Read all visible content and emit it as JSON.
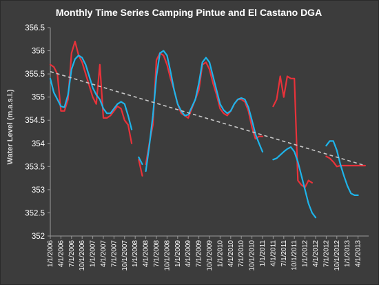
{
  "chart_data": {
    "type": "line",
    "title": "Monthly Time Series Camping Pintue and El Castano DGA",
    "ylabel": "Water Level (m.a.s.l.)",
    "xlabel": "",
    "ylim": [
      352,
      356.5
    ],
    "y_ticks": [
      "352",
      "352.5",
      "353",
      "353.5",
      "354",
      "354.5",
      "355",
      "355.5",
      "356",
      "356.5"
    ],
    "x_tick_labels": [
      "1/1/2006",
      "4/1/2006",
      "7/1/2006",
      "10/1/2006",
      "1/1/2007",
      "4/1/2007",
      "7/1/2007",
      "10/1/2007",
      "1/1/2008",
      "4/1/2008",
      "7/1/2008",
      "10/1/2008",
      "1/1/2009",
      "4/1/2009",
      "7/1/2009",
      "10/1/2009",
      "1/1/2010",
      "4/1/2010",
      "7/1/2010",
      "10/1/2010",
      "1/1/2011",
      "4/1/2011",
      "7/1/2011",
      "10/1/2011",
      "1/1/2012",
      "4/1/2012",
      "7/1/2012",
      "10/1/2012",
      "1/1/2013",
      "4/1/2013"
    ],
    "grid": false,
    "legend": "none",
    "colors": {
      "red": "#e8323a",
      "blue": "#1eb4ea",
      "trend": "#c8c8c8",
      "background": "#3c3c3c"
    },
    "series": [
      {
        "color": "#e8323a",
        "segments": [
          [
            [
              "2006-01",
              355.7
            ],
            [
              "2006-02",
              355.65
            ],
            [
              "2006-03",
              355.5
            ],
            [
              "2006-04",
              354.7
            ],
            [
              "2006-05",
              354.7
            ],
            [
              "2006-06",
              354.95
            ],
            [
              "2006-07",
              355.95
            ],
            [
              "2006-08",
              356.2
            ],
            [
              "2006-09",
              355.9
            ],
            [
              "2006-10",
              355.75
            ],
            [
              "2006-11",
              355.5
            ],
            [
              "2006-12",
              355.25
            ],
            [
              "2007-01",
              355.0
            ],
            [
              "2007-02",
              354.85
            ],
            [
              "2007-03",
              355.7
            ],
            [
              "2007-04",
              354.55
            ],
            [
              "2007-05",
              354.55
            ],
            [
              "2007-06",
              354.6
            ],
            [
              "2007-07",
              354.7
            ],
            [
              "2007-08",
              354.8
            ],
            [
              "2007-09",
              354.75
            ],
            [
              "2007-10",
              354.5
            ],
            [
              "2007-11",
              354.4
            ],
            [
              "2007-12",
              354.0
            ]
          ],
          [
            [
              "2008-02",
              353.65
            ],
            [
              "2008-03",
              353.3
            ]
          ],
          [
            [
              "2008-04",
              353.55
            ],
            [
              "2008-05",
              354.0
            ],
            [
              "2008-06",
              354.4
            ],
            [
              "2008-07",
              355.8
            ],
            [
              "2008-08",
              355.95
            ],
            [
              "2008-09",
              355.9
            ],
            [
              "2008-10",
              355.7
            ],
            [
              "2008-11",
              355.4
            ],
            [
              "2008-12",
              355.15
            ],
            [
              "2009-01",
              354.85
            ],
            [
              "2009-02",
              354.65
            ],
            [
              "2009-03",
              354.6
            ],
            [
              "2009-04",
              354.55
            ],
            [
              "2009-05",
              354.75
            ],
            [
              "2009-06",
              354.95
            ],
            [
              "2009-07",
              355.15
            ],
            [
              "2009-08",
              355.7
            ],
            [
              "2009-09",
              355.75
            ],
            [
              "2009-10",
              355.6
            ],
            [
              "2009-11",
              355.3
            ],
            [
              "2009-12",
              355.05
            ],
            [
              "2010-01",
              354.75
            ],
            [
              "2010-02",
              354.65
            ],
            [
              "2010-03",
              354.6
            ],
            [
              "2010-04",
              354.7
            ],
            [
              "2010-05",
              354.85
            ],
            [
              "2010-06",
              354.95
            ],
            [
              "2010-07",
              354.95
            ],
            [
              "2010-08",
              354.9
            ],
            [
              "2010-09",
              354.7
            ],
            [
              "2010-10",
              354.35
            ],
            [
              "2010-11",
              354.1
            ],
            [
              "2010-12",
              354.15
            ],
            [
              "2011-01",
              354.15
            ]
          ],
          [
            [
              "2011-04",
              354.8
            ],
            [
              "2011-05",
              354.95
            ],
            [
              "2011-06",
              355.45
            ],
            [
              "2011-07",
              355.0
            ],
            [
              "2011-08",
              355.45
            ],
            [
              "2011-09",
              355.4
            ],
            [
              "2011-10",
              355.4
            ],
            [
              "2011-11",
              353.2
            ],
            [
              "2011-12",
              353.1
            ],
            [
              "2012-01",
              353.05
            ],
            [
              "2012-02",
              353.2
            ],
            [
              "2012-03",
              353.15
            ]
          ],
          [
            [
              "2012-07",
              353.72
            ],
            [
              "2012-08",
              353.68
            ],
            [
              "2012-09",
              353.6
            ],
            [
              "2012-10",
              353.5
            ],
            [
              "2012-11",
              353.52
            ],
            [
              "2012-12",
              353.52
            ],
            [
              "2013-01",
              353.52
            ],
            [
              "2013-02",
              353.52
            ],
            [
              "2013-03",
              353.52
            ],
            [
              "2013-04",
              353.52
            ],
            [
              "2013-05",
              353.52
            ],
            [
              "2013-06",
              353.52
            ]
          ]
        ]
      },
      {
        "color": "#1eb4ea",
        "segments": [
          [
            [
              "2006-01",
              355.4
            ],
            [
              "2006-02",
              355.1
            ],
            [
              "2006-03",
              354.95
            ],
            [
              "2006-04",
              354.8
            ],
            [
              "2006-05",
              354.78
            ],
            [
              "2006-06",
              355.05
            ],
            [
              "2006-07",
              355.6
            ],
            [
              "2006-08",
              355.82
            ],
            [
              "2006-09",
              355.9
            ],
            [
              "2006-10",
              355.85
            ],
            [
              "2006-11",
              355.7
            ],
            [
              "2006-12",
              355.45
            ],
            [
              "2007-01",
              355.2
            ],
            [
              "2007-02",
              355.05
            ],
            [
              "2007-03",
              354.95
            ],
            [
              "2007-04",
              354.75
            ],
            [
              "2007-05",
              354.65
            ],
            [
              "2007-06",
              354.65
            ],
            [
              "2007-07",
              354.75
            ],
            [
              "2007-08",
              354.85
            ],
            [
              "2007-09",
              354.9
            ],
            [
              "2007-10",
              354.85
            ],
            [
              "2007-11",
              354.6
            ],
            [
              "2007-12",
              354.3
            ]
          ],
          [
            [
              "2008-02",
              353.7
            ],
            [
              "2008-03",
              353.55
            ]
          ],
          [
            [
              "2008-04",
              353.4
            ],
            [
              "2008-05",
              353.95
            ],
            [
              "2008-06",
              354.6
            ],
            [
              "2008-07",
              355.45
            ],
            [
              "2008-08",
              355.95
            ],
            [
              "2008-09",
              356.0
            ],
            [
              "2008-10",
              355.9
            ],
            [
              "2008-11",
              355.55
            ],
            [
              "2008-12",
              355.15
            ],
            [
              "2009-01",
              354.85
            ],
            [
              "2009-02",
              354.7
            ],
            [
              "2009-03",
              354.6
            ],
            [
              "2009-04",
              354.62
            ],
            [
              "2009-05",
              354.78
            ],
            [
              "2009-06",
              354.95
            ],
            [
              "2009-07",
              355.3
            ],
            [
              "2009-08",
              355.75
            ],
            [
              "2009-09",
              355.85
            ],
            [
              "2009-10",
              355.75
            ],
            [
              "2009-11",
              355.45
            ],
            [
              "2009-12",
              355.15
            ],
            [
              "2010-01",
              354.85
            ],
            [
              "2010-02",
              354.72
            ],
            [
              "2010-03",
              354.65
            ],
            [
              "2010-04",
              354.7
            ],
            [
              "2010-05",
              354.85
            ],
            [
              "2010-06",
              354.95
            ],
            [
              "2010-07",
              354.98
            ],
            [
              "2010-08",
              354.95
            ],
            [
              "2010-09",
              354.78
            ],
            [
              "2010-10",
              354.5
            ],
            [
              "2010-11",
              354.2
            ],
            [
              "2010-12",
              354.0
            ],
            [
              "2011-01",
              353.82
            ]
          ],
          [
            [
              "2011-04",
              353.65
            ],
            [
              "2011-05",
              353.68
            ],
            [
              "2011-06",
              353.75
            ],
            [
              "2011-07",
              353.82
            ],
            [
              "2011-08",
              353.88
            ],
            [
              "2011-09",
              353.92
            ],
            [
              "2011-10",
              353.82
            ],
            [
              "2011-11",
              353.6
            ],
            [
              "2011-12",
              353.3
            ],
            [
              "2012-01",
              353.0
            ],
            [
              "2012-02",
              352.7
            ],
            [
              "2012-03",
              352.5
            ],
            [
              "2012-04",
              352.4
            ]
          ],
          [
            [
              "2012-07",
              353.95
            ],
            [
              "2012-08",
              354.05
            ],
            [
              "2012-09",
              354.05
            ],
            [
              "2012-10",
              353.85
            ],
            [
              "2012-11",
              353.55
            ],
            [
              "2012-12",
              353.3
            ],
            [
              "2013-01",
              353.08
            ],
            [
              "2013-02",
              352.92
            ],
            [
              "2013-03",
              352.88
            ],
            [
              "2013-04",
              352.88
            ]
          ]
        ]
      }
    ],
    "trendline": {
      "style": "dashed",
      "from": [
        "2006-01",
        355.55
      ],
      "to": [
        "2013-06",
        353.52
      ]
    }
  }
}
